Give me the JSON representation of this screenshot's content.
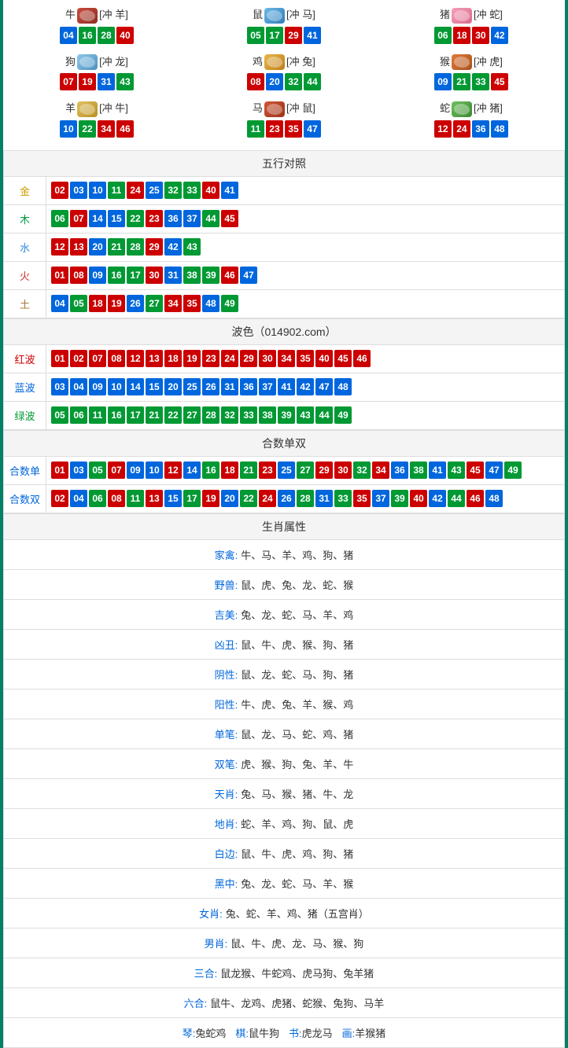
{
  "colors": {
    "red": "#cc0000",
    "blue": "#0066dd",
    "green": "#009933",
    "border": "#ddd",
    "outer_border": "#008066",
    "header_bg": "#f4f4f4"
  },
  "ball_colors": {
    "01": "red",
    "02": "red",
    "07": "red",
    "08": "red",
    "12": "red",
    "13": "red",
    "18": "red",
    "19": "red",
    "23": "red",
    "24": "red",
    "29": "red",
    "30": "red",
    "34": "red",
    "35": "red",
    "40": "red",
    "45": "red",
    "46": "red",
    "03": "blue",
    "04": "blue",
    "09": "blue",
    "10": "blue",
    "14": "blue",
    "15": "blue",
    "20": "blue",
    "25": "blue",
    "26": "blue",
    "31": "blue",
    "36": "blue",
    "37": "blue",
    "41": "blue",
    "42": "blue",
    "47": "blue",
    "48": "blue",
    "05": "green",
    "06": "green",
    "11": "green",
    "16": "green",
    "17": "green",
    "21": "green",
    "22": "green",
    "27": "green",
    "28": "green",
    "32": "green",
    "33": "green",
    "38": "green",
    "39": "green",
    "43": "green",
    "44": "green",
    "49": "green"
  },
  "zodiac": [
    {
      "name": "牛",
      "icon": "ic-ox",
      "chong": "[冲 羊]",
      "nums": [
        "04",
        "16",
        "28",
        "40"
      ]
    },
    {
      "name": "鼠",
      "icon": "ic-rat",
      "chong": "[冲 马]",
      "nums": [
        "05",
        "17",
        "29",
        "41"
      ]
    },
    {
      "name": "猪",
      "icon": "ic-pig",
      "chong": "[冲 蛇]",
      "nums": [
        "06",
        "18",
        "30",
        "42"
      ]
    },
    {
      "name": "狗",
      "icon": "ic-dog",
      "chong": "[冲 龙]",
      "nums": [
        "07",
        "19",
        "31",
        "43"
      ]
    },
    {
      "name": "鸡",
      "icon": "ic-rooster",
      "chong": "[冲 兔]",
      "nums": [
        "08",
        "20",
        "32",
        "44"
      ]
    },
    {
      "name": "猴",
      "icon": "ic-monkey",
      "chong": "[冲 虎]",
      "nums": [
        "09",
        "21",
        "33",
        "45"
      ]
    },
    {
      "name": "羊",
      "icon": "ic-goat",
      "chong": "[冲 牛]",
      "nums": [
        "10",
        "22",
        "34",
        "46"
      ]
    },
    {
      "name": "马",
      "icon": "ic-horse",
      "chong": "[冲 鼠]",
      "nums": [
        "11",
        "23",
        "35",
        "47"
      ]
    },
    {
      "name": "蛇",
      "icon": "ic-snake",
      "chong": "[冲 猪]",
      "nums": [
        "12",
        "24",
        "36",
        "48"
      ]
    }
  ],
  "wuxing": {
    "header": "五行对照",
    "rows": [
      {
        "label": "金",
        "class": "lbl-gold",
        "nums": [
          "02",
          "03",
          "10",
          "11",
          "24",
          "25",
          "32",
          "33",
          "40",
          "41"
        ]
      },
      {
        "label": "木",
        "class": "lbl-wood",
        "nums": [
          "06",
          "07",
          "14",
          "15",
          "22",
          "23",
          "36",
          "37",
          "44",
          "45"
        ]
      },
      {
        "label": "水",
        "class": "lbl-water",
        "nums": [
          "12",
          "13",
          "20",
          "21",
          "28",
          "29",
          "42",
          "43"
        ]
      },
      {
        "label": "火",
        "class": "lbl-fire",
        "nums": [
          "01",
          "08",
          "09",
          "16",
          "17",
          "30",
          "31",
          "38",
          "39",
          "46",
          "47"
        ]
      },
      {
        "label": "土",
        "class": "lbl-earth",
        "nums": [
          "04",
          "05",
          "18",
          "19",
          "26",
          "27",
          "34",
          "35",
          "48",
          "49"
        ]
      }
    ]
  },
  "bose_header": "波色（014902.com）",
  "bose": [
    {
      "label": "红波",
      "class": "lbl-red",
      "nums": [
        "01",
        "02",
        "07",
        "08",
        "12",
        "13",
        "18",
        "19",
        "23",
        "24",
        "29",
        "30",
        "34",
        "35",
        "40",
        "45",
        "46"
      ]
    },
    {
      "label": "蓝波",
      "class": "lbl-blue",
      "nums": [
        "03",
        "04",
        "09",
        "10",
        "14",
        "15",
        "20",
        "25",
        "26",
        "31",
        "36",
        "37",
        "41",
        "42",
        "47",
        "48"
      ]
    },
    {
      "label": "绿波",
      "class": "lbl-green",
      "nums": [
        "05",
        "06",
        "11",
        "16",
        "17",
        "21",
        "22",
        "27",
        "28",
        "32",
        "33",
        "38",
        "39",
        "43",
        "44",
        "49"
      ]
    }
  ],
  "heshu_header": "合数单双",
  "heshu": [
    {
      "label": "合数单",
      "class": "lbl-odd",
      "nums": [
        "01",
        "03",
        "05",
        "07",
        "09",
        "10",
        "12",
        "14",
        "16",
        "18",
        "21",
        "23",
        "25",
        "27",
        "29",
        "30",
        "32",
        "34",
        "36",
        "38",
        "41",
        "43",
        "45",
        "47",
        "49"
      ]
    },
    {
      "label": "合数双",
      "class": "lbl-even",
      "nums": [
        "02",
        "04",
        "06",
        "08",
        "11",
        "13",
        "15",
        "17",
        "19",
        "20",
        "22",
        "24",
        "26",
        "28",
        "31",
        "33",
        "35",
        "37",
        "39",
        "40",
        "42",
        "44",
        "46",
        "48"
      ]
    }
  ],
  "shuxing_header": "生肖属性",
  "shuxing": [
    {
      "label": "家禽:",
      "text": "牛、马、羊、鸡、狗、猪"
    },
    {
      "label": "野兽:",
      "text": "鼠、虎、兔、龙、蛇、猴"
    },
    {
      "label": "吉美:",
      "text": "兔、龙、蛇、马、羊、鸡"
    },
    {
      "label": "凶丑:",
      "text": "鼠、牛、虎、猴、狗、猪"
    },
    {
      "label": "阴性:",
      "text": "鼠、龙、蛇、马、狗、猪"
    },
    {
      "label": "阳性:",
      "text": "牛、虎、兔、羊、猴、鸡"
    },
    {
      "label": "单笔:",
      "text": "鼠、龙、马、蛇、鸡、猪"
    },
    {
      "label": "双笔:",
      "text": "虎、猴、狗、兔、羊、牛"
    },
    {
      "label": "天肖:",
      "text": "兔、马、猴、猪、牛、龙"
    },
    {
      "label": "地肖:",
      "text": "蛇、羊、鸡、狗、鼠、虎"
    },
    {
      "label": "白边:",
      "text": "鼠、牛、虎、鸡、狗、猪"
    },
    {
      "label": "黑中:",
      "text": "兔、龙、蛇、马、羊、猴"
    },
    {
      "label": "女肖:",
      "text": "兔、蛇、羊、鸡、猪（五宫肖）"
    },
    {
      "label": "男肖:",
      "text": "鼠、牛、虎、龙、马、猴、狗"
    },
    {
      "label": "三合:",
      "text": "鼠龙猴、牛蛇鸡、虎马狗、兔羊猪"
    },
    {
      "label": "六合:",
      "text": "鼠牛、龙鸡、虎猪、蛇猴、兔狗、马羊"
    }
  ],
  "bottom_groups": [
    {
      "label": "琴:",
      "text": "兔蛇鸡"
    },
    {
      "label": "棋:",
      "text": "鼠牛狗"
    },
    {
      "label": "书:",
      "text": "虎龙马"
    },
    {
      "label": "画:",
      "text": "羊猴猪"
    }
  ]
}
